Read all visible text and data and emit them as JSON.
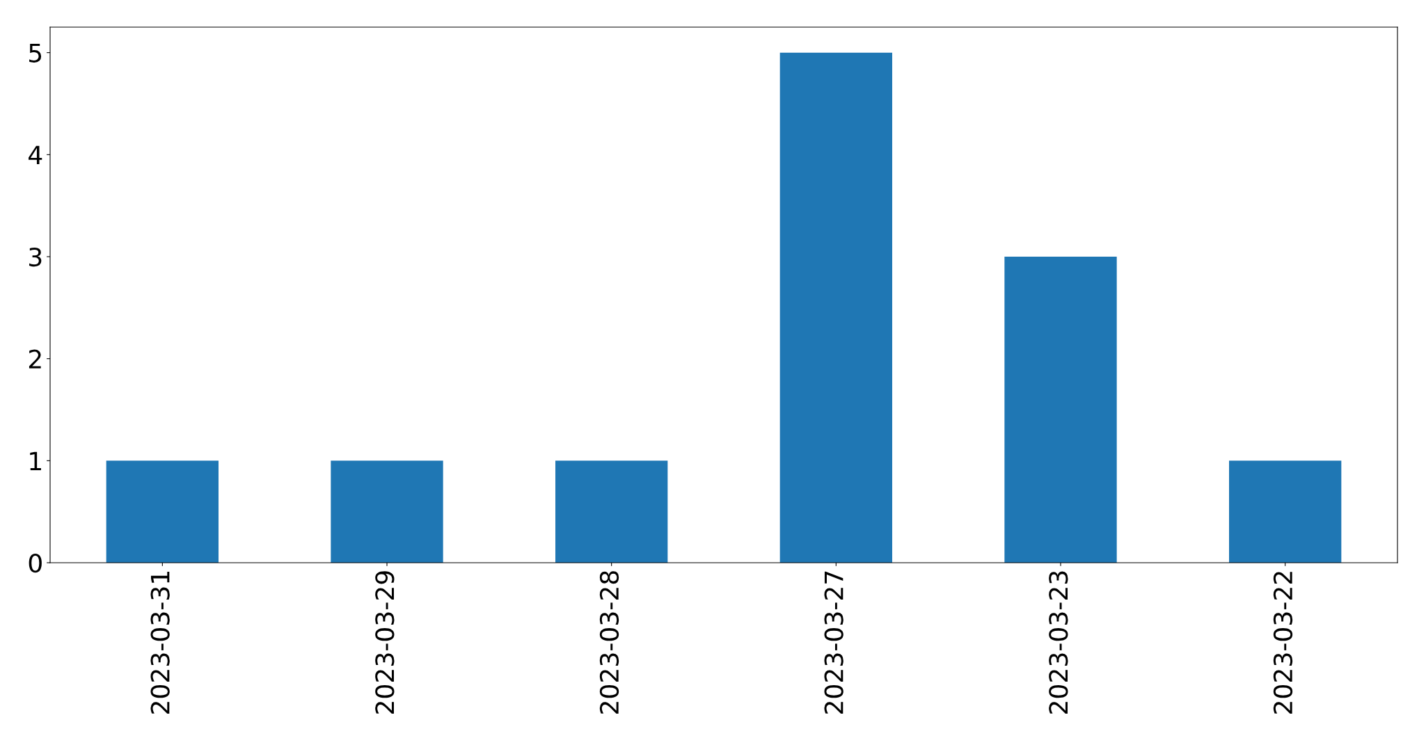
{
  "chart_data": {
    "type": "bar",
    "categories": [
      "2023-03-31",
      "2023-03-29",
      "2023-03-28",
      "2023-03-27",
      "2023-03-23",
      "2023-03-22"
    ],
    "values": [
      1,
      1,
      1,
      5,
      3,
      1
    ],
    "color": "#1f77b4",
    "ylim": [
      0,
      5.25
    ],
    "yticks": [
      0,
      1,
      2,
      3,
      4,
      5
    ],
    "grid": false
  }
}
